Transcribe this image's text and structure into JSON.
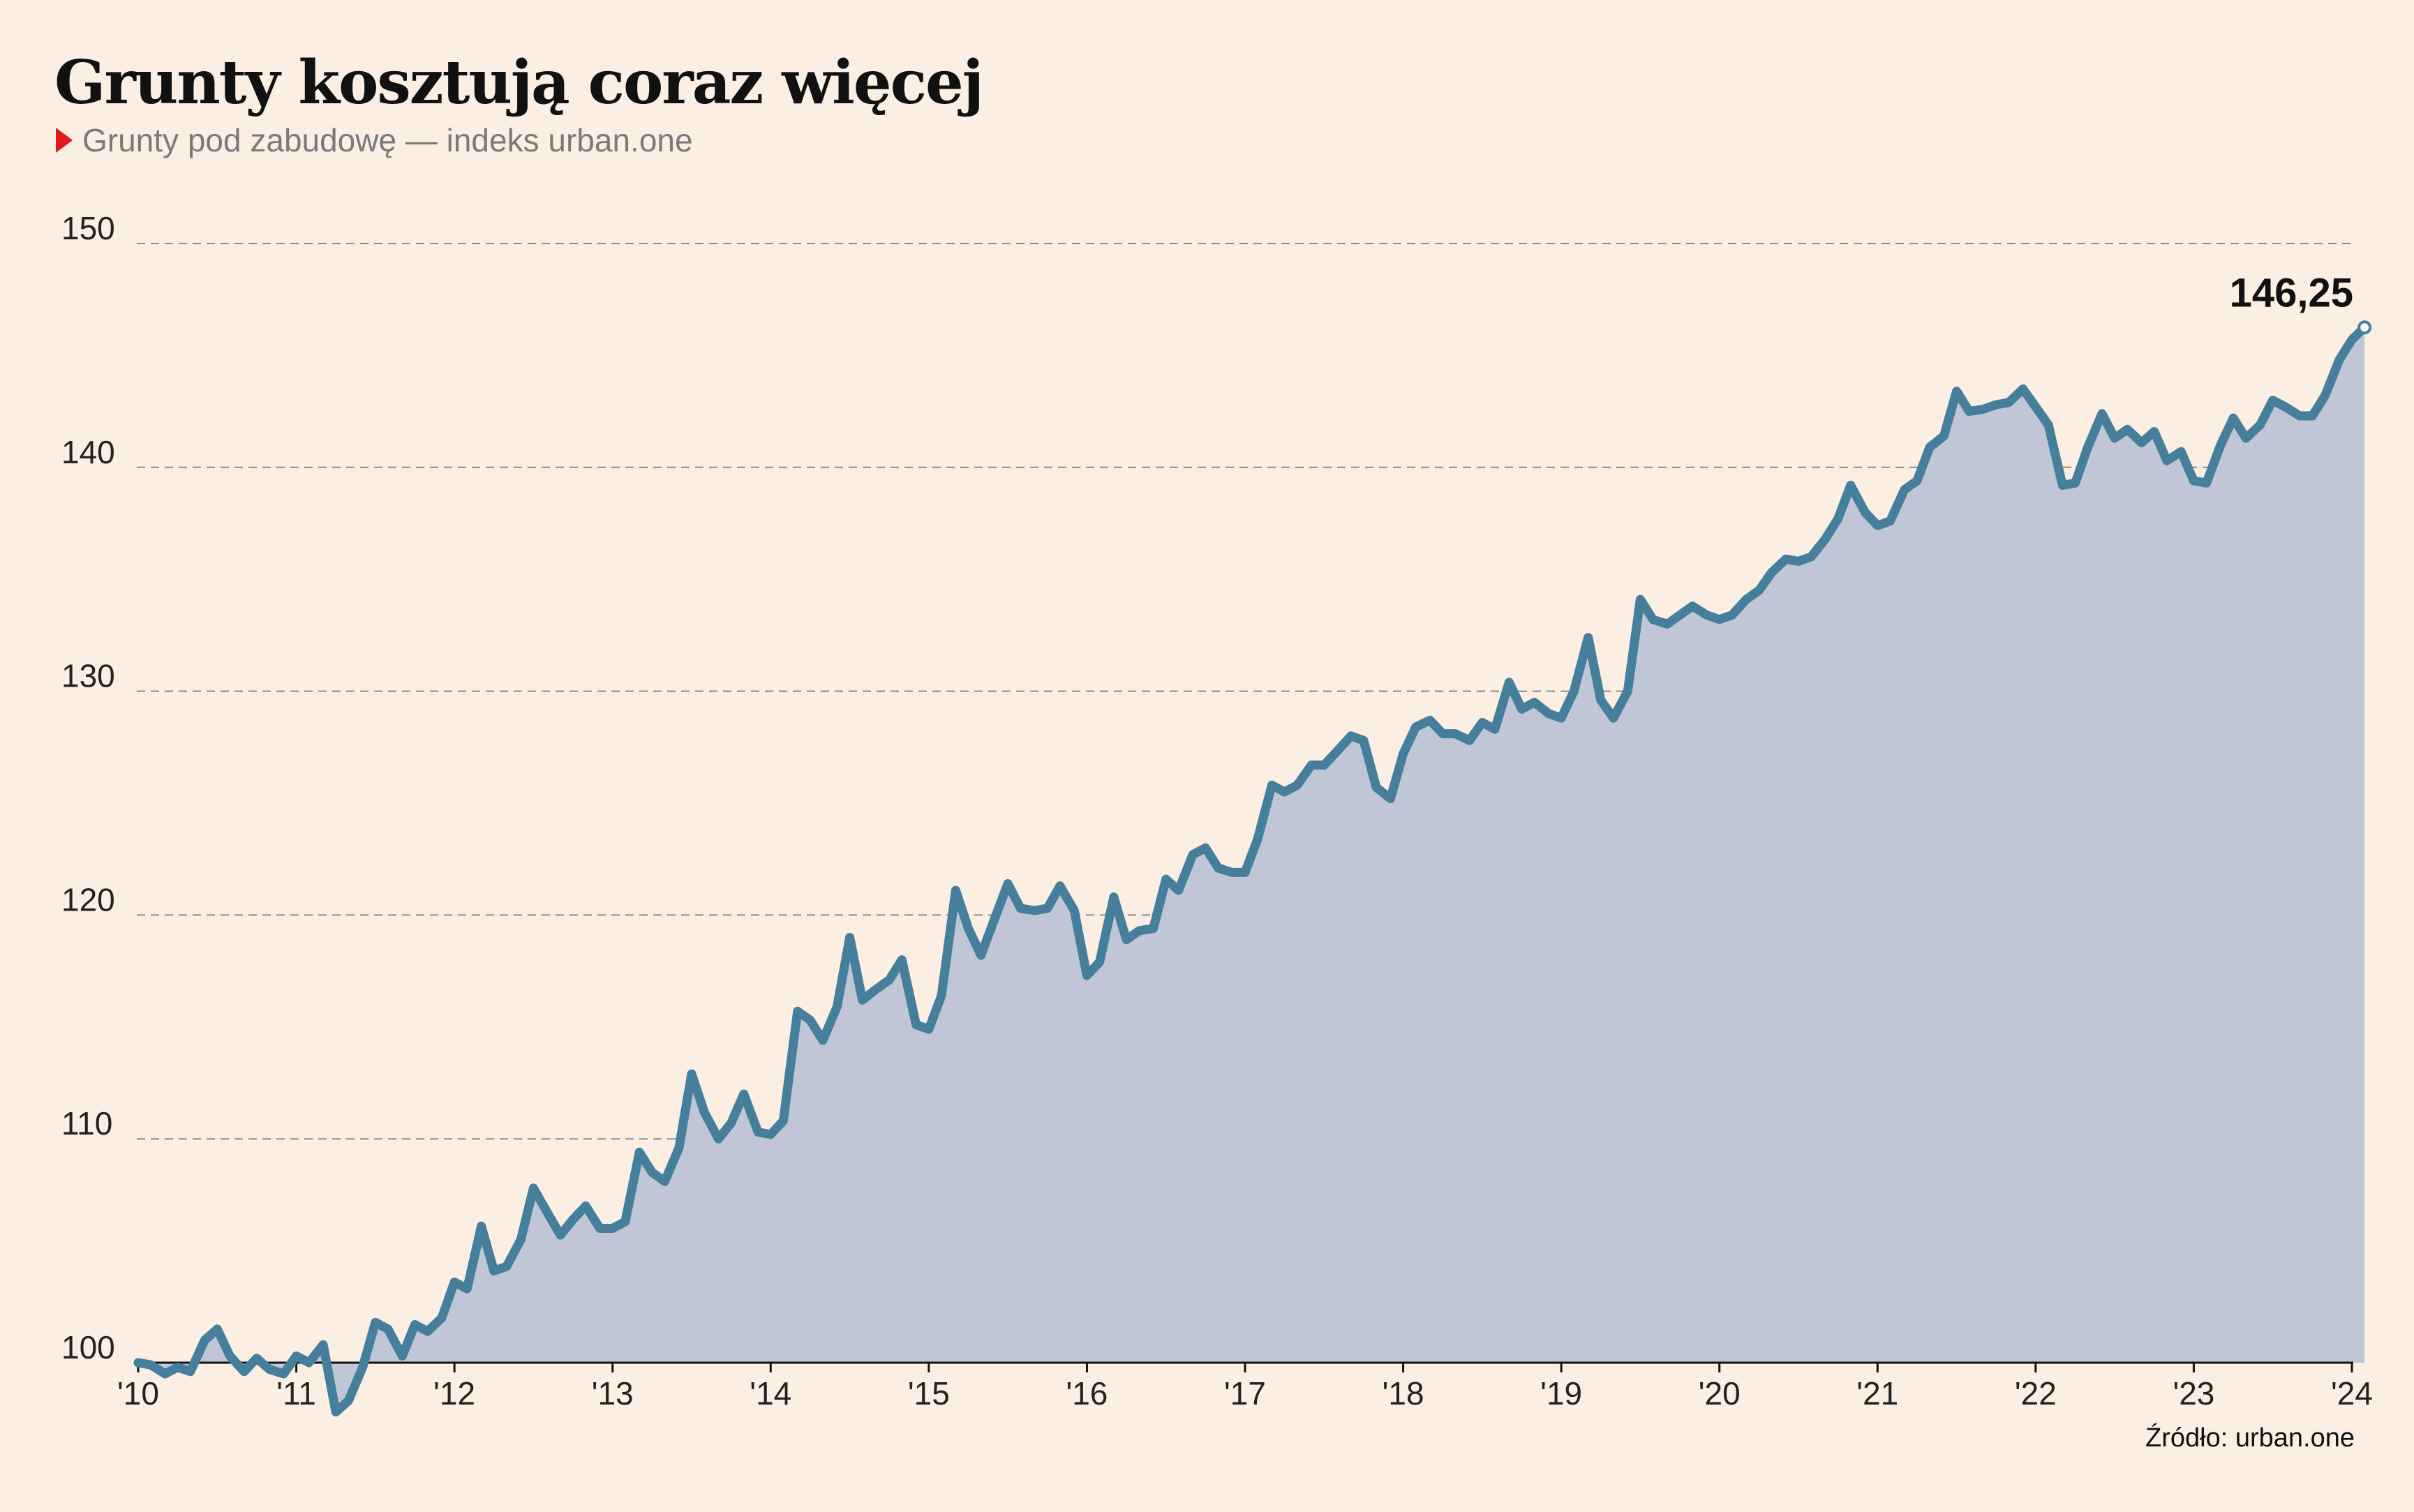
{
  "header": {
    "title": "Grunty kosztują coraz więcej",
    "subtitle": "Grunty pod zabudowę — indeks urban.one"
  },
  "footer": {
    "source": "Źródło: urban.one"
  },
  "colors": {
    "background": "#fbeee2",
    "line": "#467f9c",
    "area": "#c1c6d6",
    "grid": "#8a8a8a",
    "accent": "#e0191b"
  },
  "chart_data": {
    "type": "area",
    "title": "Grunty kosztują coraz więcej",
    "subtitle": "Grunty pod zabudowę — indeks urban.one",
    "xlabel": "",
    "ylabel": "",
    "ylim": [
      100,
      150
    ],
    "yticks": [
      100,
      110,
      120,
      130,
      140,
      150
    ],
    "grid": true,
    "xrange": [
      2010.0,
      2024.0
    ],
    "xticks": [
      {
        "x": 2010,
        "label": "'10"
      },
      {
        "x": 2011,
        "label": "'11"
      },
      {
        "x": 2012,
        "label": "'12"
      },
      {
        "x": 2013,
        "label": "'13"
      },
      {
        "x": 2014,
        "label": "'14"
      },
      {
        "x": 2015,
        "label": "'15"
      },
      {
        "x": 2016,
        "label": "'16"
      },
      {
        "x": 2017,
        "label": "'17"
      },
      {
        "x": 2018,
        "label": "'18"
      },
      {
        "x": 2019,
        "label": "'19"
      },
      {
        "x": 2020,
        "label": "'20"
      },
      {
        "x": 2021,
        "label": "'21"
      },
      {
        "x": 2022,
        "label": "'22"
      },
      {
        "x": 2023,
        "label": "'23"
      },
      {
        "x": 2024,
        "label": "'24"
      }
    ],
    "end_label": "146,25",
    "series": [
      {
        "name": "Indeks urban.one",
        "points": [
          [
            2010.0,
            100.0
          ],
          [
            2010.08,
            99.9
          ],
          [
            2010.17,
            99.5
          ],
          [
            2010.25,
            99.8
          ],
          [
            2010.33,
            99.6
          ],
          [
            2010.42,
            101.0
          ],
          [
            2010.5,
            101.5
          ],
          [
            2010.58,
            100.3
          ],
          [
            2010.67,
            99.6
          ],
          [
            2010.75,
            100.2
          ],
          [
            2010.83,
            99.7
          ],
          [
            2010.92,
            99.5
          ],
          [
            2011.0,
            100.3
          ],
          [
            2011.08,
            100.0
          ],
          [
            2011.17,
            100.8
          ],
          [
            2011.25,
            97.8
          ],
          [
            2011.33,
            98.3
          ],
          [
            2011.42,
            99.8
          ],
          [
            2011.5,
            101.8
          ],
          [
            2011.58,
            101.5
          ],
          [
            2011.67,
            100.3
          ],
          [
            2011.75,
            101.7
          ],
          [
            2011.83,
            101.4
          ],
          [
            2011.92,
            102.0
          ],
          [
            2012.0,
            103.6
          ],
          [
            2012.08,
            103.3
          ],
          [
            2012.17,
            106.1
          ],
          [
            2012.25,
            104.1
          ],
          [
            2012.33,
            104.3
          ],
          [
            2012.42,
            105.5
          ],
          [
            2012.5,
            107.8
          ],
          [
            2012.58,
            106.8
          ],
          [
            2012.67,
            105.7
          ],
          [
            2012.75,
            106.4
          ],
          [
            2012.83,
            107.0
          ],
          [
            2012.92,
            106.0
          ],
          [
            2013.0,
            106.0
          ],
          [
            2013.08,
            106.3
          ],
          [
            2013.17,
            109.4
          ],
          [
            2013.25,
            108.5
          ],
          [
            2013.33,
            108.1
          ],
          [
            2013.42,
            109.6
          ],
          [
            2013.5,
            112.9
          ],
          [
            2013.58,
            111.2
          ],
          [
            2013.67,
            110.0
          ],
          [
            2013.75,
            110.7
          ],
          [
            2013.83,
            112.0
          ],
          [
            2013.92,
            110.3
          ],
          [
            2014.0,
            110.2
          ],
          [
            2014.08,
            110.8
          ],
          [
            2014.17,
            115.7
          ],
          [
            2014.25,
            115.3
          ],
          [
            2014.33,
            114.4
          ],
          [
            2014.42,
            115.9
          ],
          [
            2014.5,
            119.0
          ],
          [
            2014.58,
            116.2
          ],
          [
            2014.67,
            116.7
          ],
          [
            2014.75,
            117.1
          ],
          [
            2014.83,
            118.0
          ],
          [
            2014.92,
            115.1
          ],
          [
            2015.0,
            114.9
          ],
          [
            2015.08,
            116.4
          ],
          [
            2015.17,
            121.1
          ],
          [
            2015.25,
            119.4
          ],
          [
            2015.33,
            118.2
          ],
          [
            2015.42,
            119.9
          ],
          [
            2015.5,
            121.4
          ],
          [
            2015.58,
            120.3
          ],
          [
            2015.67,
            120.2
          ],
          [
            2015.75,
            120.3
          ],
          [
            2015.83,
            121.3
          ],
          [
            2015.92,
            120.2
          ],
          [
            2016.0,
            117.3
          ],
          [
            2016.08,
            117.9
          ],
          [
            2016.17,
            120.8
          ],
          [
            2016.25,
            118.9
          ],
          [
            2016.33,
            119.3
          ],
          [
            2016.42,
            119.4
          ],
          [
            2016.5,
            121.6
          ],
          [
            2016.58,
            121.1
          ],
          [
            2016.67,
            122.7
          ],
          [
            2016.75,
            123.0
          ],
          [
            2016.83,
            122.1
          ],
          [
            2016.92,
            121.9
          ],
          [
            2017.0,
            121.9
          ],
          [
            2017.08,
            123.4
          ],
          [
            2017.17,
            125.8
          ],
          [
            2017.25,
            125.5
          ],
          [
            2017.33,
            125.8
          ],
          [
            2017.42,
            126.7
          ],
          [
            2017.5,
            126.7
          ],
          [
            2017.58,
            127.3
          ],
          [
            2017.67,
            128.0
          ],
          [
            2017.75,
            127.8
          ],
          [
            2017.83,
            125.7
          ],
          [
            2017.92,
            125.2
          ],
          [
            2018.0,
            127.2
          ],
          [
            2018.08,
            128.4
          ],
          [
            2018.17,
            128.7
          ],
          [
            2018.25,
            128.1
          ],
          [
            2018.33,
            128.1
          ],
          [
            2018.42,
            127.8
          ],
          [
            2018.5,
            128.6
          ],
          [
            2018.58,
            128.3
          ],
          [
            2018.67,
            130.4
          ],
          [
            2018.75,
            129.2
          ],
          [
            2018.83,
            129.5
          ],
          [
            2018.92,
            129.0
          ],
          [
            2019.0,
            128.8
          ],
          [
            2019.08,
            130.0
          ],
          [
            2019.17,
            132.4
          ],
          [
            2019.25,
            129.6
          ],
          [
            2019.33,
            128.8
          ],
          [
            2019.42,
            130.0
          ],
          [
            2019.5,
            134.1
          ],
          [
            2019.58,
            133.2
          ],
          [
            2019.67,
            133.0
          ],
          [
            2019.75,
            133.4
          ],
          [
            2019.83,
            133.8
          ],
          [
            2019.92,
            133.4
          ],
          [
            2020.0,
            133.2
          ],
          [
            2020.08,
            133.4
          ],
          [
            2020.17,
            134.1
          ],
          [
            2020.25,
            134.5
          ],
          [
            2020.33,
            135.3
          ],
          [
            2020.42,
            135.9
          ],
          [
            2020.5,
            135.8
          ],
          [
            2020.58,
            136.0
          ],
          [
            2020.67,
            136.8
          ],
          [
            2020.75,
            137.7
          ],
          [
            2020.83,
            139.2
          ],
          [
            2020.92,
            138.0
          ],
          [
            2021.0,
            137.4
          ],
          [
            2021.08,
            137.6
          ],
          [
            2021.17,
            139.0
          ],
          [
            2021.25,
            139.4
          ],
          [
            2021.33,
            140.9
          ],
          [
            2021.42,
            141.4
          ],
          [
            2021.5,
            143.4
          ],
          [
            2021.58,
            142.5
          ],
          [
            2021.67,
            142.6
          ],
          [
            2021.75,
            142.8
          ],
          [
            2021.83,
            142.9
          ],
          [
            2021.92,
            143.5
          ],
          [
            2022.0,
            142.7
          ],
          [
            2022.08,
            141.9
          ],
          [
            2022.17,
            139.2
          ],
          [
            2022.25,
            139.3
          ],
          [
            2022.33,
            140.9
          ],
          [
            2022.42,
            142.4
          ],
          [
            2022.5,
            141.3
          ],
          [
            2022.58,
            141.7
          ],
          [
            2022.67,
            141.1
          ],
          [
            2022.75,
            141.6
          ],
          [
            2022.83,
            140.3
          ],
          [
            2022.92,
            140.7
          ],
          [
            2023.0,
            139.4
          ],
          [
            2023.08,
            139.3
          ],
          [
            2023.17,
            141.0
          ],
          [
            2023.25,
            142.2
          ],
          [
            2023.33,
            141.3
          ],
          [
            2023.42,
            141.9
          ],
          [
            2023.5,
            143.0
          ],
          [
            2023.58,
            142.7
          ],
          [
            2023.67,
            142.3
          ],
          [
            2023.75,
            142.3
          ],
          [
            2023.83,
            143.2
          ],
          [
            2023.92,
            144.8
          ],
          [
            2024.0,
            145.7
          ],
          [
            2024.08,
            146.25
          ]
        ]
      }
    ]
  }
}
